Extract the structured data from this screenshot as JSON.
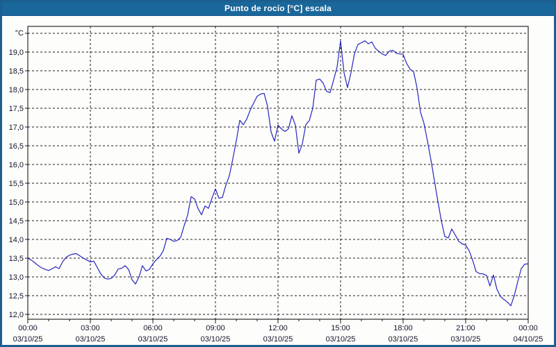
{
  "window": {
    "title": "Punto de rocío [°C] escala",
    "titlebar_bg": "#1a679b",
    "border_color": "#1c5f8f"
  },
  "chart_data": {
    "type": "line",
    "title": "Punto de rocío [°C] escala",
    "grid": "dashed",
    "legend": "none",
    "y_axis": {
      "unit": "°C",
      "min": 12.0,
      "max": 19.5,
      "tick_step": 0.5,
      "label_color": "#13132b"
    },
    "y_ticks": [
      {
        "value": 12.0,
        "label": "12,0"
      },
      {
        "value": 12.5,
        "label": "12,5"
      },
      {
        "value": 13.0,
        "label": "13,0"
      },
      {
        "value": 13.5,
        "label": "13,5"
      },
      {
        "value": 14.0,
        "label": "14,0"
      },
      {
        "value": 14.5,
        "label": "14,5"
      },
      {
        "value": 15.0,
        "label": "15,0"
      },
      {
        "value": 15.5,
        "label": "15,5"
      },
      {
        "value": 16.0,
        "label": "16,0"
      },
      {
        "value": 16.5,
        "label": "16,5"
      },
      {
        "value": 17.0,
        "label": "17,0"
      },
      {
        "value": 17.5,
        "label": "17,5"
      },
      {
        "value": 18.0,
        "label": "18,0"
      },
      {
        "value": 18.5,
        "label": "18,5"
      },
      {
        "value": 19.0,
        "label": "19,0"
      },
      {
        "value": 19.5,
        "label": ""
      }
    ],
    "x_axis": {
      "start_min": 0,
      "end_min": 1440,
      "major_tick_min": 180,
      "minor_tick_min": 60
    },
    "x_ticks": [
      {
        "min": 0,
        "time": "00:00",
        "date": "03/10/25"
      },
      {
        "min": 180,
        "time": "03:00",
        "date": "03/10/25"
      },
      {
        "min": 360,
        "time": "06:00",
        "date": "03/10/25"
      },
      {
        "min": 540,
        "time": "09:00",
        "date": "03/10/25"
      },
      {
        "min": 720,
        "time": "12:00",
        "date": "03/10/25"
      },
      {
        "min": 900,
        "time": "15:00",
        "date": "03/10/25"
      },
      {
        "min": 1080,
        "time": "18:00",
        "date": "03/10/25"
      },
      {
        "min": 1260,
        "time": "21:00",
        "date": "03/10/25"
      },
      {
        "min": 1440,
        "time": "00:00",
        "date": "04/10/25"
      }
    ],
    "series": [
      {
        "name": "Punto de rocío",
        "color": "#2424c0",
        "start_min": 0,
        "step_min": 10,
        "values": [
          13.5,
          13.45,
          13.38,
          13.3,
          13.24,
          13.2,
          13.17,
          13.22,
          13.27,
          13.22,
          13.4,
          13.52,
          13.58,
          13.61,
          13.62,
          13.56,
          13.5,
          13.45,
          13.4,
          13.42,
          13.25,
          13.08,
          12.97,
          12.94,
          12.96,
          13.05,
          13.21,
          13.23,
          13.3,
          13.2,
          12.92,
          12.81,
          13.0,
          13.3,
          13.16,
          13.2,
          13.35,
          13.46,
          13.55,
          13.7,
          14.03,
          14.0,
          13.95,
          13.97,
          14.06,
          14.37,
          14.65,
          15.14,
          15.08,
          14.82,
          14.66,
          14.89,
          14.83,
          15.1,
          15.35,
          15.1,
          15.12,
          15.45,
          15.7,
          16.15,
          16.63,
          17.18,
          17.06,
          17.21,
          17.45,
          17.64,
          17.82,
          17.88,
          17.9,
          17.55,
          16.87,
          16.62,
          17.05,
          16.95,
          16.88,
          16.95,
          17.3,
          17.05,
          16.3,
          16.55,
          17.06,
          17.17,
          17.5,
          18.25,
          18.28,
          18.17,
          17.95,
          17.92,
          18.25,
          18.6,
          19.3,
          18.45,
          18.05,
          18.45,
          18.95,
          19.2,
          19.25,
          19.3,
          19.22,
          19.27,
          19.1,
          19.02,
          18.95,
          18.91,
          19.02,
          19.05,
          18.97,
          18.95,
          18.94,
          18.7,
          18.54,
          18.48,
          18.05,
          17.4,
          17.1,
          16.63,
          16.13,
          15.57,
          15.02,
          14.5,
          14.08,
          14.04,
          14.28,
          14.12,
          13.95,
          13.88,
          13.85,
          13.7,
          13.45,
          13.14,
          13.09,
          13.08,
          13.04,
          12.76,
          13.05,
          12.67,
          12.48,
          12.4,
          12.33,
          12.23,
          12.5,
          12.88,
          13.22,
          13.34,
          13.35
        ]
      }
    ]
  }
}
